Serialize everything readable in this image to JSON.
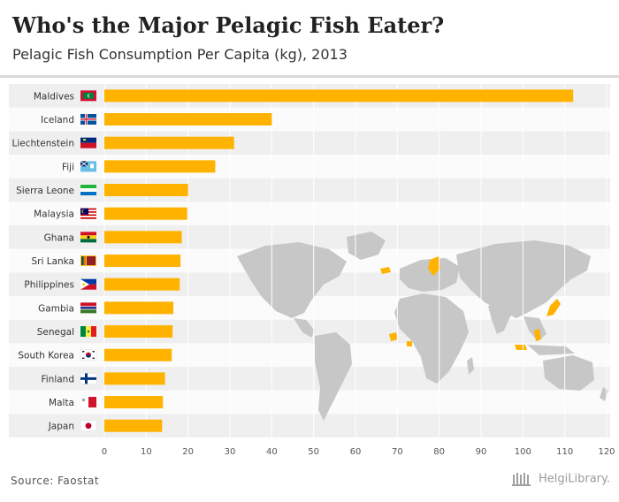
{
  "header": {
    "title": "Who's the Major Pelagic Fish Eater?",
    "subtitle": "Pelagic Fish Consumption Per Capita (kg), 2013"
  },
  "footer": {
    "source": "Source: Faostat",
    "brand": "HelgiLibrary."
  },
  "colors": {
    "bar": "#ffb300",
    "stripe_dark": "#efefef",
    "stripe_light": "#fbfbfb",
    "map_land": "#c7c7c7",
    "map_highlight": "#ffb300"
  },
  "icons": {
    "map": "world-map-illustration",
    "brand": "library-columns-icon"
  },
  "chart_data": {
    "type": "bar",
    "orientation": "horizontal",
    "title": "Pelagic Fish Consumption Per Capita (kg), 2013",
    "categories": [
      "Maldives",
      "Iceland",
      "Liechtenstein",
      "Fiji",
      "Sierra Leone",
      "Malaysia",
      "Ghana",
      "Sri Lanka",
      "Philippines",
      "Gambia",
      "Senegal",
      "South Korea",
      "Finland",
      "Malta",
      "Japan"
    ],
    "values": [
      112.0,
      40.0,
      31.0,
      26.5,
      20.0,
      19.8,
      18.5,
      18.2,
      18.0,
      16.5,
      16.3,
      16.1,
      14.5,
      14.0,
      13.8
    ],
    "xlim": [
      0,
      120
    ],
    "xticks": [
      0,
      10,
      20,
      30,
      40,
      50,
      60,
      70,
      80,
      90,
      100,
      110,
      120
    ],
    "grid": "vertical",
    "legend": "none"
  }
}
